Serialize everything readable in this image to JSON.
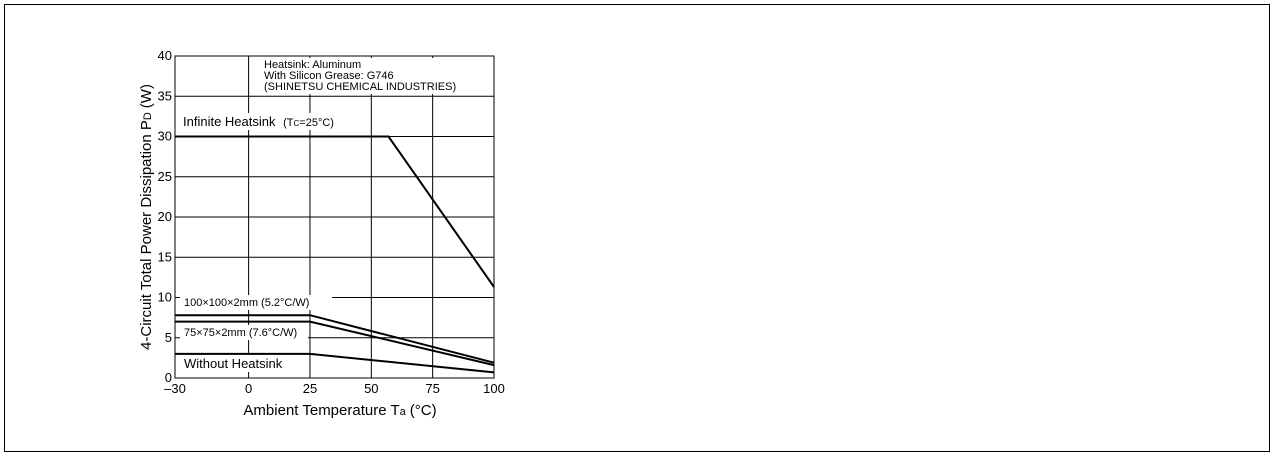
{
  "chart_data": {
    "type": "line",
    "title": "",
    "xlabel_main": "Ambient Temperature T",
    "xlabel_sub": "a",
    "xlabel_unit": "(°C)",
    "ylabel_main": "4-Circuit Total Power Dissipation P",
    "ylabel_sub": "D",
    "ylabel_unit": "(W)",
    "xlim": [
      -30,
      100
    ],
    "ylim": [
      0,
      40
    ],
    "grid": true,
    "xticks": [
      -30,
      0,
      25,
      50,
      75,
      100
    ],
    "xtick_labels": [
      "–30",
      "0",
      "25",
      "50",
      "75",
      "100"
    ],
    "yticks": [
      0,
      5,
      10,
      15,
      20,
      25,
      30,
      35,
      40
    ],
    "ytick_labels": [
      "0",
      "5",
      "10",
      "15",
      "20",
      "25",
      "30",
      "35",
      "40"
    ],
    "series": [
      {
        "x": [
          -30,
          57,
          100
        ],
        "y": [
          30,
          30,
          11.3
        ]
      },
      {
        "x": [
          -30,
          25,
          100
        ],
        "y": [
          7.8,
          7.8,
          1.9
        ]
      },
      {
        "x": [
          -30,
          25,
          100
        ],
        "y": [
          7.0,
          7.0,
          1.6
        ]
      },
      {
        "x": [
          -30,
          25,
          100
        ],
        "y": [
          3.0,
          3.0,
          0.7
        ]
      }
    ],
    "annotations": {
      "heatsink_note": [
        "Heatsink: Aluminum",
        "With Silicon Grease: G746",
        "(SHINETSU CHEMICAL INDUSTRIES)"
      ],
      "infinite_label": "Infinite Heatsink",
      "infinite_cond_main": "(T",
      "infinite_cond_sub": "C",
      "infinite_cond_rest": "=25°C)",
      "label_100": "100×100×2mm (5.2°C/W)",
      "label_75": "75×75×2mm (7.6°C/W)",
      "label_without": "Without Heatsink"
    }
  }
}
